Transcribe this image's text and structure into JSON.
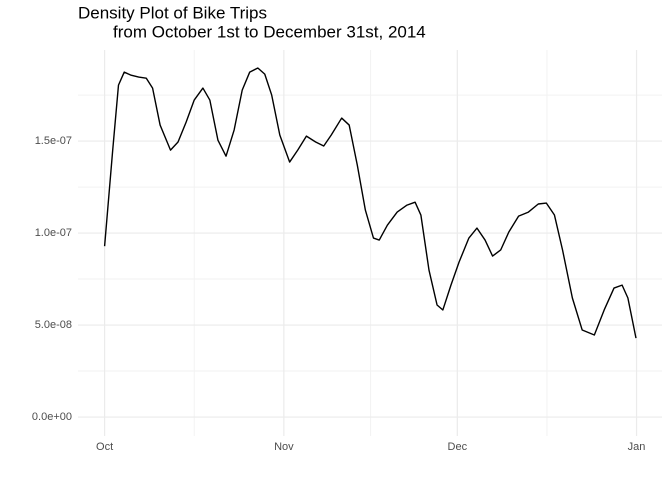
{
  "chart_data": {
    "type": "line",
    "title": "Density Plot of Bike Trips",
    "subtitle": "from October 1st to December 31st, 2014",
    "x": [
      0,
      1.4,
      2.4,
      3.4,
      4.5,
      5.9,
      7.2,
      8.3,
      9.6,
      11.4,
      12.7,
      14.1,
      15.5,
      17.0,
      18.2,
      19.6,
      21.0,
      22.4,
      23.8,
      25.1,
      26.5,
      27.7,
      28.9,
      30.3,
      32.0,
      33.4,
      34.9,
      36.5,
      37.9,
      39.2,
      41.0,
      42.3,
      43.7,
      45.1,
      46.5,
      47.5,
      48.9,
      50.6,
      52.3,
      53.7,
      54.7,
      56.1,
      57.5,
      58.5,
      59.9,
      61.3,
      63.0,
      64.4,
      65.8,
      67.1,
      68.5,
      69.9,
      71.6,
      73.3,
      75.0,
      76.4,
      77.8,
      79.2,
      80.9,
      82.6,
      84.7,
      86.4,
      88.1,
      89.5,
      90.5,
      91.9
    ],
    "values": [
      9.29e-08,
      1.45e-07,
      1.804e-07,
      1.875e-07,
      1.859e-07,
      1.848e-07,
      1.842e-07,
      1.788e-07,
      1.587e-07,
      1.451e-07,
      1.495e-07,
      1.603e-07,
      1.723e-07,
      1.788e-07,
      1.723e-07,
      1.505e-07,
      1.418e-07,
      1.56e-07,
      1.777e-07,
      1.875e-07,
      1.897e-07,
      1.864e-07,
      1.75e-07,
      1.533e-07,
      1.386e-07,
      1.451e-07,
      1.527e-07,
      1.495e-07,
      1.473e-07,
      1.533e-07,
      1.625e-07,
      1.587e-07,
      1.37e-07,
      1.125e-07,
      9.73e-08,
      9.62e-08,
      1.043e-07,
      1.114e-07,
      1.152e-07,
      1.168e-07,
      1.098e-07,
      7.99e-08,
      6.09e-08,
      5.82e-08,
      7.17e-08,
      8.42e-08,
      9.73e-08,
      1.027e-07,
      9.62e-08,
      8.75e-08,
      9.08e-08,
      1.005e-07,
      1.092e-07,
      1.114e-07,
      1.158e-07,
      1.163e-07,
      1.098e-07,
      9.08e-08,
      6.47e-08,
      4.73e-08,
      4.46e-08,
      5.82e-08,
      7.01e-08,
      7.17e-08,
      6.47e-08,
      4.29e-08
    ],
    "color": "#000000",
    "xlim": [
      -4.6,
      96.4
    ],
    "xticks": [
      {
        "value": 0,
        "label": "Oct"
      },
      {
        "value": 31,
        "label": "Nov"
      },
      {
        "value": 61,
        "label": "Dec"
      },
      {
        "value": 92,
        "label": "Jan"
      }
    ],
    "x_minor_ticks": [
      15.5,
      46,
      76.5
    ],
    "ylim": [
      -1.03e-08,
      1.995e-07
    ],
    "yticks": [
      {
        "value": 0,
        "label": "0.0e+00"
      },
      {
        "value": 5e-08,
        "label": "5.0e-08"
      },
      {
        "value": 1e-07,
        "label": "1.0e-07"
      },
      {
        "value": 1.5e-07,
        "label": "1.5e-07"
      }
    ],
    "y_minor_ticks": [
      2.5e-08,
      7.5e-08,
      1.25e-07,
      1.75e-07
    ],
    "grid": true
  }
}
